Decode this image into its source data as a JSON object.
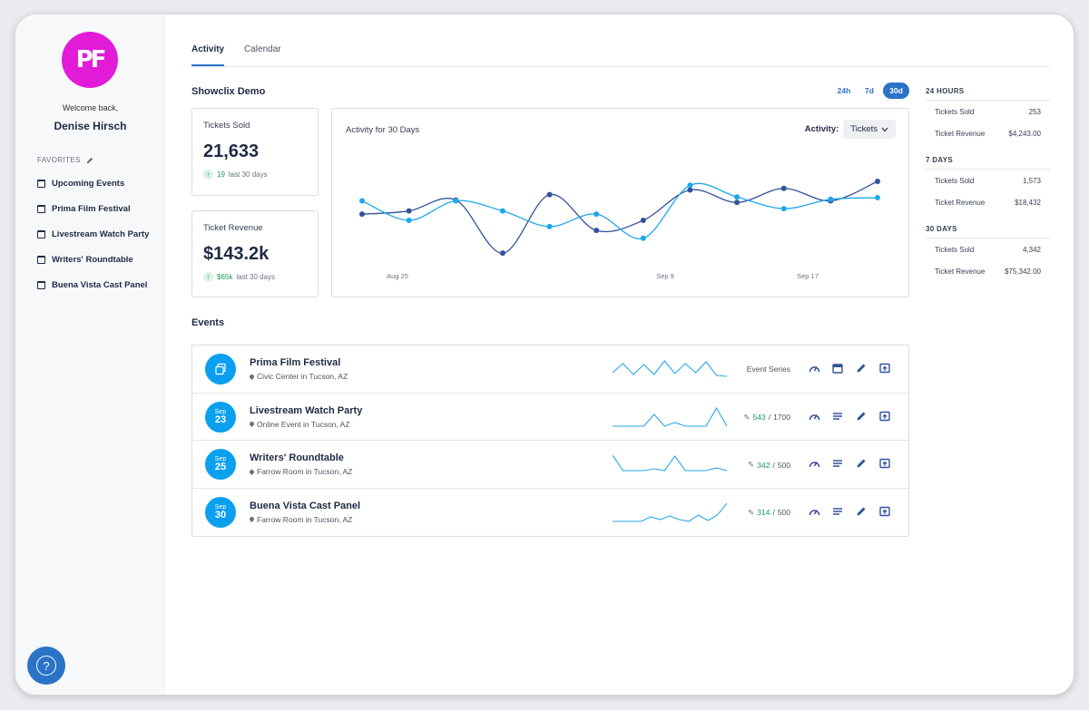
{
  "sidebar": {
    "logo_text": "PF",
    "welcome": "Welcome back,",
    "user_name": "Denise Hirsch",
    "favorites_label": "FAVORITES",
    "favorites": [
      {
        "label": "Upcoming Events"
      },
      {
        "label": "Prima Film Festival"
      },
      {
        "label": "Livestream Watch Party"
      },
      {
        "label": "Writers' Roundtable"
      },
      {
        "label": "Buena Vista Cast Panel"
      }
    ],
    "help_label": "?"
  },
  "tabs": [
    {
      "label": "Activity"
    },
    {
      "label": "Calendar"
    }
  ],
  "org_title": "Showclix Demo",
  "ranges": [
    {
      "label": "24h"
    },
    {
      "label": "7d"
    },
    {
      "label": "30d"
    }
  ],
  "stats": {
    "tickets_sold": {
      "label": "Tickets Sold",
      "value": "21,633",
      "delta": "19",
      "delta_suffix": "last 30 days"
    },
    "ticket_revenue": {
      "label": "Ticket Revenue",
      "value": "$143.2k",
      "delta": "$65k",
      "delta_suffix": "last 30 days"
    }
  },
  "activity_chart": {
    "title": "Activity for 30 Days",
    "filter_label": "Activity:",
    "filter_value": "Tickets",
    "x_labels": [
      "Aug 25",
      "Sep 9",
      "Sep 17"
    ]
  },
  "chart_data": {
    "type": "line",
    "title": "Activity for 30 Days",
    "x_tick_labels": [
      "Aug 25",
      "Sep 9",
      "Sep 17"
    ],
    "series": [
      {
        "color": "#33529a",
        "values": [
          0.58,
          0.62,
          0.76,
          0.08,
          0.83,
          0.37,
          0.5,
          0.89,
          0.73,
          0.91,
          0.75,
          1.0
        ]
      },
      {
        "color": "#1ea7ea",
        "values": [
          0.75,
          0.5,
          0.75,
          0.62,
          0.42,
          0.58,
          0.27,
          0.95,
          0.8,
          0.65,
          0.77,
          0.79
        ]
      }
    ]
  },
  "summary": [
    {
      "heading": "24 HOURS",
      "rows": [
        {
          "label": "Tickets Sold",
          "value": "253"
        },
        {
          "label": "Ticket Revenue",
          "value": "$4,243.00"
        }
      ]
    },
    {
      "heading": "7 DAYS",
      "rows": [
        {
          "label": "Tickets Sold",
          "value": "1,573"
        },
        {
          "label": "Ticket Revenue",
          "value": "$18,432"
        }
      ]
    },
    {
      "heading": "30 DAYS",
      "rows": [
        {
          "label": "Tickets Sold",
          "value": "4,342"
        },
        {
          "label": "Ticket Revenue",
          "value": "$75,342.00"
        }
      ]
    }
  ],
  "events_title": "Events",
  "events": [
    {
      "name": "Prima Film Festival",
      "location": "Civic Center in Tucson, AZ",
      "month": "",
      "day": "",
      "status": "Event Series",
      "sold": "",
      "capacity": "",
      "spark": [
        0.3,
        0.8,
        0.2,
        0.75,
        0.2,
        0.95,
        0.25,
        0.8,
        0.3,
        0.9,
        0.15,
        0.1
      ]
    },
    {
      "name": "Livestream Watch Party",
      "location": "Online Event in Tucson, AZ",
      "month": "Sep",
      "day": "23",
      "status": "",
      "sold": "543",
      "capacity": "1700",
      "spark": [
        0.0,
        0.0,
        0.0,
        0.0,
        0.65,
        0.0,
        0.2,
        0.0,
        0.0,
        0.0,
        1.0,
        0.0
      ]
    },
    {
      "name": "Writers' Roundtable",
      "location": "Farrow Room in Tucson, AZ",
      "month": "Sep",
      "day": "25",
      "status": "",
      "sold": "342",
      "capacity": "500",
      "spark": [
        1.0,
        0.15,
        0.15,
        0.15,
        0.25,
        0.15,
        0.95,
        0.15,
        0.15,
        0.15,
        0.3,
        0.15
      ]
    },
    {
      "name": "Buena Vista Cast Panel",
      "location": "Farrow Room in Tucson, AZ",
      "month": "Sep",
      "day": "30",
      "status": "",
      "sold": "314",
      "capacity": "500",
      "spark": [
        0.0,
        0.0,
        0.0,
        0.0,
        0.25,
        0.1,
        0.3,
        0.1,
        0.0,
        0.35,
        0.05,
        0.35,
        1.0
      ]
    }
  ],
  "colors": {
    "accent": "#2a73c6",
    "logo": "#e21bd9",
    "badge": "#0aa0ef",
    "positive": "#18a058"
  }
}
